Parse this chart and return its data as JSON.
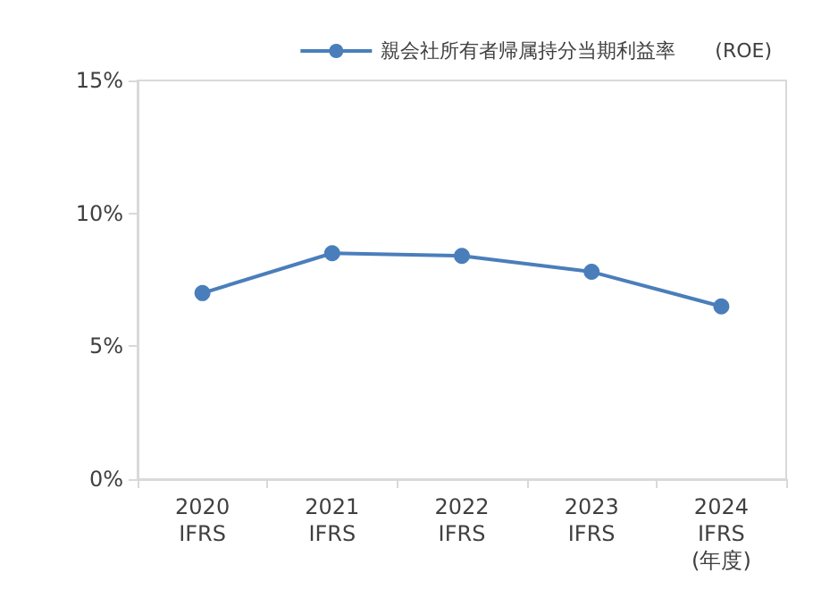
{
  "chart_data": {
    "type": "line",
    "categories": [
      "2020\nIFRS",
      "2021\nIFRS",
      "2022\nIFRS",
      "2023\nIFRS",
      "2024\nIFRS\n(年度)"
    ],
    "series": [
      {
        "name": "親会社所有者帰属持分当期利益率　　(ROE)",
        "color": "#4a7ebb",
        "values": [
          7.0,
          8.5,
          8.4,
          7.8,
          6.5
        ]
      }
    ],
    "ylim": [
      0,
      15
    ],
    "yticks": [
      {
        "value": 0,
        "label": "0%"
      },
      {
        "value": 5,
        "label": "5%"
      },
      {
        "value": 10,
        "label": "10%"
      },
      {
        "value": 15,
        "label": "15%"
      }
    ],
    "grid": false,
    "legend": "top right",
    "marker": "circle",
    "line_style": "solid"
  }
}
